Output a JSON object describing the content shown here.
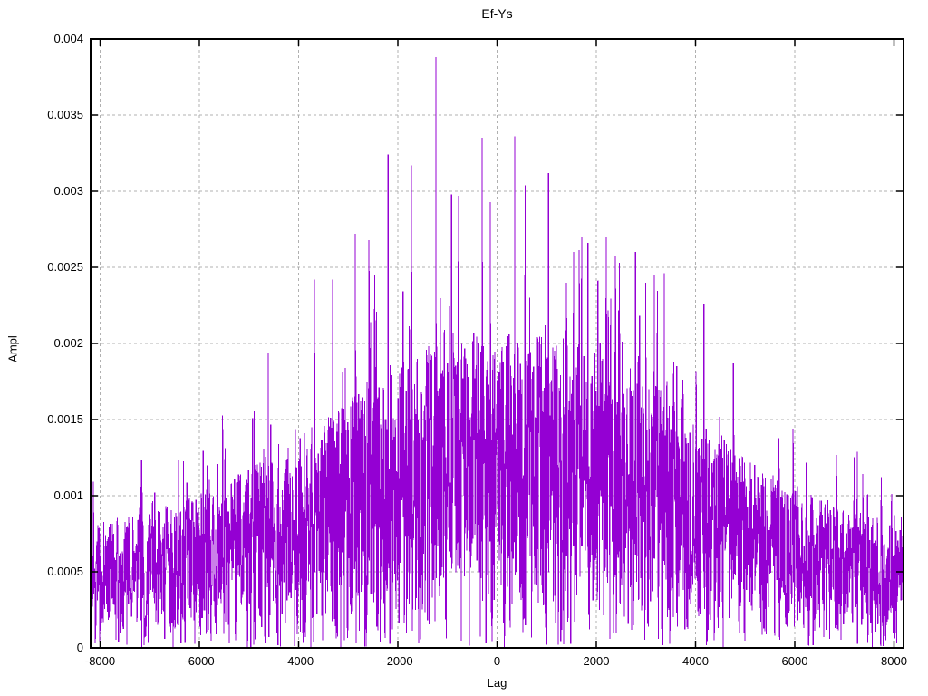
{
  "page": {
    "background": "#ffffff",
    "text_color": "#000000"
  },
  "chart_data": {
    "type": "line",
    "title": "Ef-Ys",
    "xlabel": "Lag",
    "ylabel": "Ampl",
    "xlim": [
      -8192,
      8192
    ],
    "ylim": [
      0,
      0.004
    ],
    "x_ticks": {
      "values": [
        -8000,
        -6000,
        -4000,
        -2000,
        0,
        2000,
        4000,
        6000,
        8000
      ],
      "labels": [
        "-8000",
        "-6000",
        "-4000",
        "-2000",
        "0",
        "2000",
        "4000",
        "6000",
        "8000"
      ]
    },
    "y_ticks": {
      "values": [
        0,
        0.0005,
        0.001,
        0.0015,
        0.002,
        0.0025,
        0.003,
        0.0035,
        0.004
      ],
      "labels": [
        "0",
        "0.0005",
        "0.001",
        "0.0015",
        "0.002",
        "0.0025",
        "0.003",
        "0.0035",
        "0.004"
      ]
    },
    "grid": "dashed",
    "grid_color": "#b0b0b0",
    "border_color": "#000000",
    "series_color": "#9400d3",
    "description": "Dense noise spike series (cross-correlation amplitude vs lag) forming a triangular envelope peaking near lag 0; maximum isolated spike 0.00388 at lag -1233.",
    "envelope": {
      "lags": [
        -8192,
        -7000,
        -6000,
        -5000,
        -4000,
        -3000,
        -2000,
        -1500,
        -1000,
        -500,
        0,
        500,
        1000,
        1500,
        2000,
        2500,
        3000,
        3500,
        4000,
        4500,
        5000,
        5500,
        6000,
        6500,
        7000,
        7500,
        8000,
        8192
      ],
      "ampls": [
        0.00112,
        0.00122,
        0.00138,
        0.00162,
        0.00188,
        0.00222,
        0.00258,
        0.00268,
        0.00275,
        0.0028,
        0.0028,
        0.00279,
        0.00276,
        0.0027,
        0.00263,
        0.00253,
        0.0024,
        0.00225,
        0.00207,
        0.0019,
        0.0017,
        0.00157,
        0.00146,
        0.00135,
        0.00126,
        0.00119,
        0.00112,
        0.0011
      ]
    },
    "peaks": [
      [
        -4610,
        0.00194
      ],
      [
        -3680,
        0.00242
      ],
      [
        -3315,
        0.00242
      ],
      [
        -2860,
        0.00272
      ],
      [
        -2584,
        0.00268
      ],
      [
        -2200,
        0.00324
      ],
      [
        -1726,
        0.00317
      ],
      [
        -1233,
        0.00388
      ],
      [
        -920,
        0.00298
      ],
      [
        -776,
        0.00297
      ],
      [
        -300,
        0.00335
      ],
      [
        -137,
        0.00293
      ],
      [
        356,
        0.00336
      ],
      [
        564,
        0.00304
      ],
      [
        1040,
        0.00312
      ],
      [
        1190,
        0.00294
      ],
      [
        1540,
        0.0026
      ],
      [
        1708,
        0.0027
      ],
      [
        1830,
        0.00266
      ],
      [
        2201,
        0.0027
      ],
      [
        2470,
        0.00253
      ],
      [
        2790,
        0.0026
      ],
      [
        3000,
        0.0024
      ],
      [
        3170,
        0.00245
      ],
      [
        3370,
        0.00246
      ],
      [
        4173,
        0.00226
      ],
      [
        4490,
        0.00195
      ],
      [
        4760,
        0.00187
      ],
      [
        7260,
        0.00129
      ]
    ],
    "noise_model": {
      "n_points": 2600,
      "seed": 77,
      "base_frac": 0.08,
      "spread_frac": 0.66,
      "spread_pow": 0.9,
      "tail_prob": 0.13,
      "tail_frac": 0.3,
      "dip_prob": 0.05,
      "dip_frac": 0.07
    }
  }
}
